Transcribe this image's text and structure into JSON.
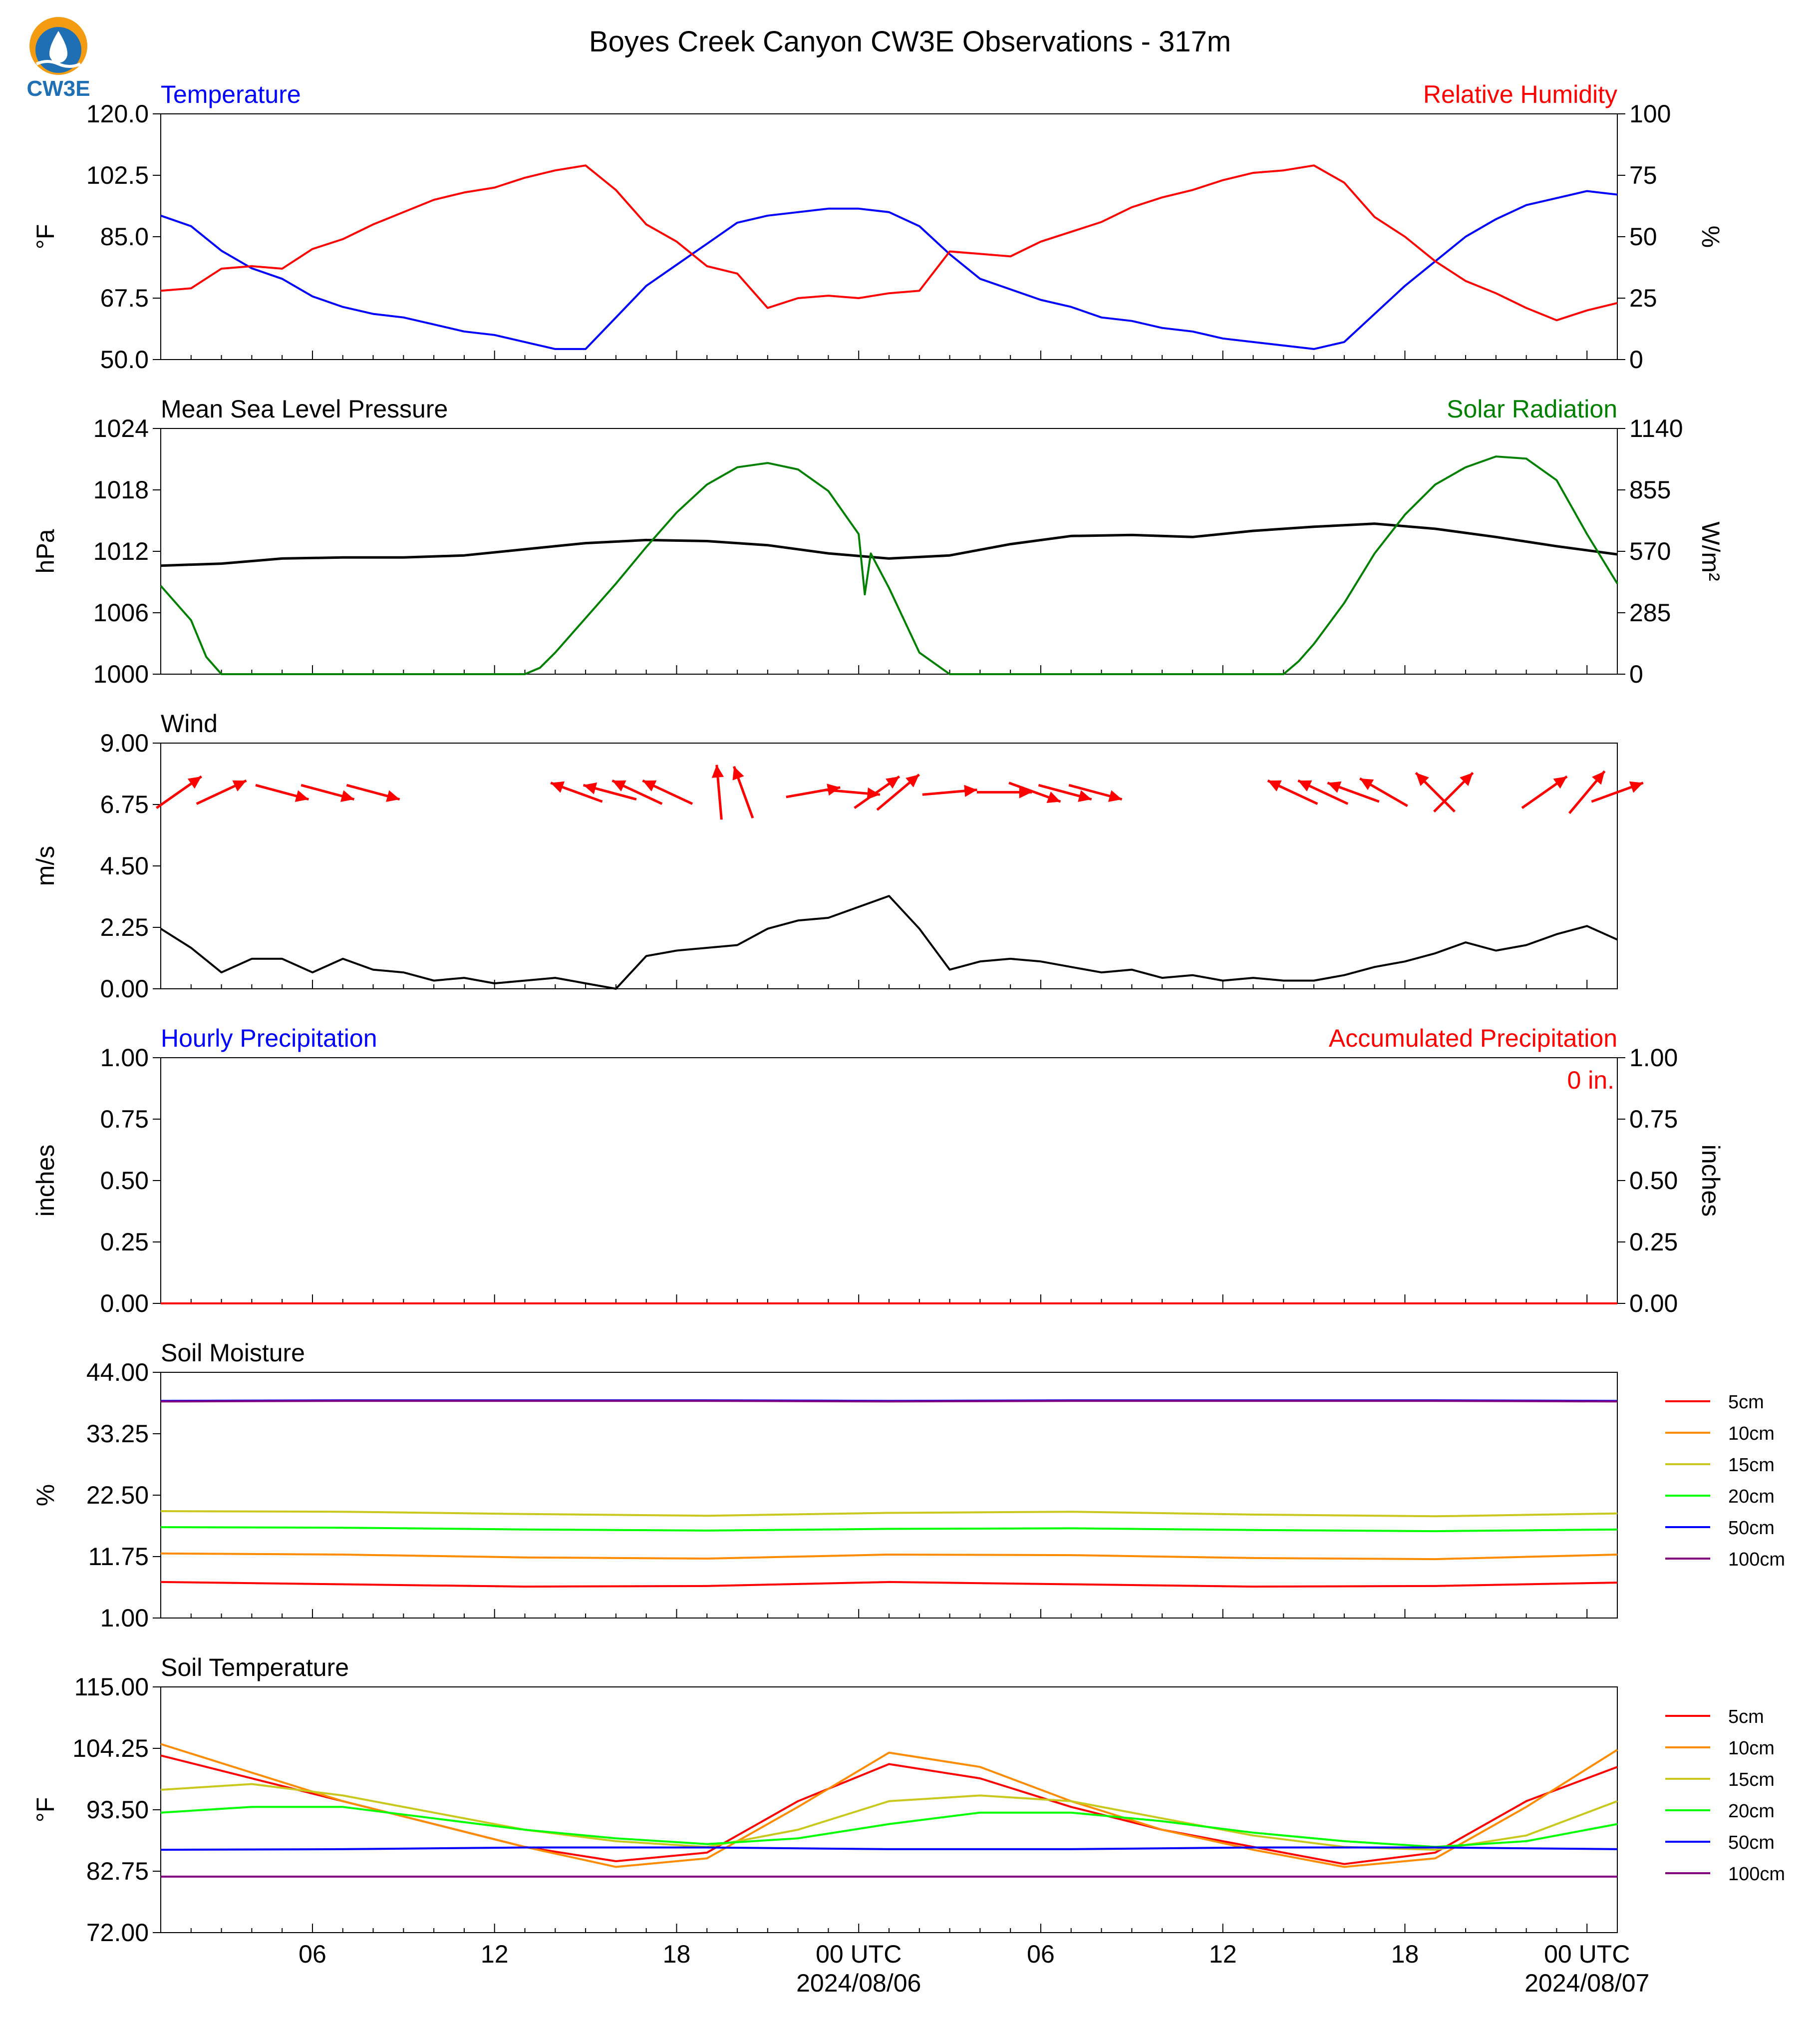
{
  "title": "Boyes Creek Canyon CW3E Observations - 317m",
  "logo": {
    "text": "CW3E",
    "icon": "water-drop-sun-logo-icon"
  },
  "colors": {
    "temp": "#0000ff",
    "rh": "#ff0000",
    "pressure": "#000000",
    "solar": "#008000",
    "wind": "#000000",
    "arrows": "#ff0000",
    "accum_text": "#ff0000",
    "hourly_label": "#0000ff"
  },
  "time_axis": {
    "ticks": [
      {
        "label": "06",
        "h": 5
      },
      {
        "label": "12",
        "h": 11
      },
      {
        "label": "18",
        "h": 17
      },
      {
        "label": "00 UTC",
        "sub": "2024/08/06",
        "h": 23
      },
      {
        "label": "06",
        "h": 29
      },
      {
        "label": "12",
        "h": 35
      },
      {
        "label": "18",
        "h": 41
      },
      {
        "label": "00 UTC",
        "sub": "2024/08/07",
        "h": 47
      }
    ]
  },
  "chart_data": [
    {
      "type": "line",
      "panel": "temperature",
      "left_title": "Temperature",
      "right_title": "Relative Humidity",
      "ylabel_left": "°F",
      "ylabel_right": "%",
      "ylim_left": [
        50,
        120
      ],
      "ylim_right": [
        0,
        100
      ],
      "yticks_left": [
        "50.0",
        "67.5",
        "85.0",
        "102.5",
        "120.0"
      ],
      "yticks_right": [
        "0",
        "25",
        "50",
        "75",
        "100"
      ],
      "series": [
        {
          "axis": "left",
          "x": [
            0,
            1,
            2,
            3,
            4,
            5,
            6,
            7,
            8,
            9,
            10,
            11,
            12,
            13,
            14,
            15,
            16,
            17,
            18,
            19,
            20,
            21,
            22,
            23,
            24,
            25,
            26,
            27,
            28,
            29,
            30,
            31,
            32,
            33,
            34,
            35,
            36,
            37,
            38,
            39,
            40,
            41,
            42,
            43,
            44,
            45,
            46,
            47,
            48
          ],
          "values": [
            91,
            88,
            81,
            76,
            73,
            68,
            65,
            63,
            62,
            60,
            58,
            57,
            55,
            53,
            53,
            62,
            71,
            77,
            83,
            89,
            91,
            92,
            93,
            93,
            92,
            88,
            80,
            73,
            70,
            67,
            65,
            62,
            61,
            59,
            58,
            56,
            55,
            54,
            53,
            55,
            63,
            71,
            78,
            85,
            90,
            94,
            96,
            98,
            97
          ]
        },
        {
          "axis": "right",
          "x": [
            0,
            1,
            2,
            3,
            4,
            5,
            6,
            7,
            8,
            9,
            10,
            11,
            12,
            13,
            14,
            15,
            16,
            17,
            18,
            19,
            20,
            21,
            22,
            23,
            24,
            25,
            26,
            27,
            28,
            29,
            30,
            31,
            32,
            33,
            34,
            35,
            36,
            37,
            38,
            39,
            40,
            41,
            42,
            43,
            44,
            45,
            46,
            47,
            48
          ],
          "values": [
            28,
            29,
            37,
            38,
            37,
            45,
            49,
            55,
            60,
            65,
            68,
            70,
            74,
            77,
            79,
            69,
            55,
            48,
            38,
            35,
            21,
            25,
            26,
            25,
            27,
            28,
            44,
            43,
            42,
            48,
            52,
            56,
            62,
            66,
            69,
            73,
            76,
            77,
            79,
            72,
            58,
            50,
            40,
            32,
            27,
            21,
            16,
            20,
            23
          ]
        }
      ]
    },
    {
      "type": "line",
      "panel": "pressure",
      "left_title": "Mean Sea Level Pressure",
      "right_title": "Solar Radiation",
      "ylabel_left": "hPa",
      "ylabel_right": "W/m²",
      "ylim_left": [
        1000,
        1024
      ],
      "ylim_right": [
        0,
        1140
      ],
      "yticks_left": [
        "1000",
        "1006",
        "1012",
        "1018",
        "1024"
      ],
      "yticks_right": [
        "0",
        "285",
        "570",
        "855",
        "1140"
      ],
      "series": [
        {
          "axis": "left",
          "x": [
            0,
            2,
            4,
            6,
            8,
            10,
            12,
            14,
            16,
            18,
            20,
            22,
            24,
            26,
            28,
            30,
            32,
            34,
            36,
            38,
            40,
            42,
            44,
            46,
            48
          ],
          "values": [
            1010.6,
            1010.8,
            1011.3,
            1011.4,
            1011.4,
            1011.6,
            1012.2,
            1012.8,
            1013.1,
            1013.0,
            1012.6,
            1011.8,
            1011.3,
            1011.6,
            1012.7,
            1013.5,
            1013.6,
            1013.4,
            1014.0,
            1014.4,
            1014.7,
            1014.2,
            1013.4,
            1012.5,
            1011.7
          ]
        },
        {
          "axis": "right",
          "x": [
            0,
            1,
            1.5,
            2,
            3,
            12,
            12.5,
            13,
            14,
            15,
            16,
            17,
            18,
            19,
            20,
            21,
            22,
            23,
            23.2,
            23.4,
            24,
            25,
            26,
            27,
            36,
            37,
            37.5,
            38,
            39,
            40,
            41,
            42,
            43,
            44,
            45,
            46,
            47,
            48
          ],
          "values": [
            410,
            250,
            80,
            0,
            0,
            0,
            30,
            100,
            260,
            420,
            590,
            750,
            880,
            960,
            980,
            950,
            850,
            650,
            370,
            560,
            400,
            100,
            0,
            0,
            0,
            0,
            60,
            140,
            330,
            560,
            740,
            880,
            960,
            1010,
            1000,
            900,
            650,
            420
          ]
        }
      ]
    },
    {
      "type": "line",
      "panel": "wind",
      "left_title": "Wind",
      "ylabel_left": "m/s",
      "ylim_left": [
        0,
        9
      ],
      "yticks_left": [
        "0.00",
        "2.25",
        "4.50",
        "6.75",
        "9.00"
      ],
      "series": [
        {
          "axis": "left",
          "x": [
            0,
            1,
            2,
            3,
            4,
            5,
            6,
            7,
            8,
            9,
            10,
            11,
            12,
            13,
            14,
            15,
            16,
            17,
            18,
            19,
            20,
            21,
            22,
            23,
            24,
            25,
            26,
            27,
            28,
            29,
            30,
            31,
            32,
            33,
            34,
            35,
            36,
            37,
            38,
            39,
            40,
            41,
            42,
            43,
            44,
            45,
            46,
            47,
            48
          ],
          "values": [
            2.2,
            1.5,
            0.6,
            1.1,
            1.1,
            0.6,
            1.1,
            0.7,
            0.6,
            0.3,
            0.4,
            0.2,
            0.3,
            0.4,
            0.2,
            0.0,
            1.2,
            1.4,
            1.5,
            1.6,
            2.2,
            2.5,
            2.6,
            3.0,
            3.4,
            2.2,
            0.7,
            1.0,
            1.1,
            1.0,
            0.8,
            0.6,
            0.7,
            0.4,
            0.5,
            0.3,
            0.4,
            0.3,
            0.3,
            0.5,
            0.8,
            1.0,
            1.3,
            1.7,
            1.4,
            1.6,
            2.0,
            2.3,
            1.8
          ]
        }
      ],
      "wind_vectors": [
        {
          "h": 0.6,
          "angle": 35
        },
        {
          "h": 2.0,
          "angle": 25
        },
        {
          "h": 4.0,
          "angle": -15
        },
        {
          "h": 5.5,
          "angle": -15
        },
        {
          "h": 7.0,
          "angle": -15
        },
        {
          "h": 13.7,
          "angle": 160
        },
        {
          "h": 14.8,
          "angle": 165
        },
        {
          "h": 15.7,
          "angle": 155
        },
        {
          "h": 16.7,
          "angle": 155
        },
        {
          "h": 18.4,
          "angle": 95
        },
        {
          "h": 19.2,
          "angle": 110
        },
        {
          "h": 21.5,
          "angle": 10
        },
        {
          "h": 22.8,
          "angle": -5
        },
        {
          "h": 23.6,
          "angle": 35
        },
        {
          "h": 24.3,
          "angle": 40
        },
        {
          "h": 26.0,
          "angle": 5
        },
        {
          "h": 27.8,
          "angle": 0
        },
        {
          "h": 28.8,
          "angle": -20
        },
        {
          "h": 29.8,
          "angle": -15
        },
        {
          "h": 30.8,
          "angle": -15
        },
        {
          "h": 37.3,
          "angle": 155
        },
        {
          "h": 38.3,
          "angle": 155
        },
        {
          "h": 39.3,
          "angle": 160
        },
        {
          "h": 40.3,
          "angle": 150
        },
        {
          "h": 42.0,
          "angle": 135
        },
        {
          "h": 42.6,
          "angle": 45
        },
        {
          "h": 45.6,
          "angle": 35
        },
        {
          "h": 47.0,
          "angle": 50
        },
        {
          "h": 48.0,
          "angle": 20
        }
      ]
    },
    {
      "type": "line",
      "panel": "precipitation",
      "left_title": "Hourly Precipitation",
      "right_title": "Accumulated Precipitation",
      "accum_label": "0 in.",
      "ylabel_left": "inches",
      "ylabel_right": "inches",
      "ylim_left": [
        0,
        1
      ],
      "ylim_right": [
        0,
        1
      ],
      "yticks_left": [
        "0.00",
        "0.25",
        "0.50",
        "0.75",
        "1.00"
      ],
      "yticks_right": [
        "0.00",
        "0.25",
        "0.50",
        "0.75",
        "1.00"
      ],
      "series": [
        {
          "axis": "left",
          "x": [
            0,
            48
          ],
          "values": [
            0,
            0
          ]
        }
      ]
    },
    {
      "type": "line",
      "panel": "soil_moisture",
      "left_title": "Soil Moisture",
      "ylabel_left": "%",
      "ylim_left": [
        1,
        44
      ],
      "yticks_left": [
        "1.00",
        "11.75",
        "22.50",
        "33.25",
        "44.00"
      ],
      "series": [
        {
          "name": "5cm",
          "color": "#ff0000",
          "x": [
            0,
            6,
            12,
            18,
            24,
            30,
            36,
            42,
            48
          ],
          "values": [
            7.3,
            6.9,
            6.5,
            6.6,
            7.3,
            6.9,
            6.5,
            6.6,
            7.2
          ]
        },
        {
          "name": "10cm",
          "color": "#ff8c00",
          "x": [
            0,
            6,
            12,
            18,
            24,
            30,
            36,
            42,
            48
          ],
          "values": [
            12.3,
            12.1,
            11.6,
            11.4,
            12.1,
            12.0,
            11.5,
            11.3,
            12.1
          ]
        },
        {
          "name": "15cm",
          "color": "#c8c81e",
          "x": [
            0,
            6,
            12,
            18,
            24,
            30,
            36,
            42,
            48
          ],
          "values": [
            19.7,
            19.6,
            19.2,
            18.9,
            19.4,
            19.6,
            19.1,
            18.8,
            19.3
          ]
        },
        {
          "name": "20cm",
          "color": "#00ff00",
          "x": [
            0,
            6,
            12,
            18,
            24,
            30,
            36,
            42,
            48
          ],
          "values": [
            16.9,
            16.8,
            16.5,
            16.3,
            16.6,
            16.7,
            16.4,
            16.2,
            16.5
          ]
        },
        {
          "name": "50cm",
          "color": "#0000ff",
          "x": [
            0,
            6,
            12,
            18,
            24,
            30,
            36,
            42,
            48
          ],
          "values": [
            39.0,
            39.1,
            39.1,
            39.1,
            39.0,
            39.1,
            39.1,
            39.1,
            39.0
          ]
        },
        {
          "name": "100cm",
          "color": "#800080",
          "x": [
            0,
            6,
            12,
            18,
            24,
            30,
            36,
            42,
            48
          ],
          "values": [
            38.9,
            39.0,
            39.0,
            39.0,
            38.9,
            39.0,
            39.0,
            39.0,
            38.9
          ]
        }
      ]
    },
    {
      "type": "line",
      "panel": "soil_temperature",
      "left_title": "Soil Temperature",
      "ylabel_left": "°F",
      "ylim_left": [
        72,
        115
      ],
      "yticks_left": [
        "72.00",
        "82.75",
        "93.50",
        "104.25",
        "115.00"
      ],
      "series": [
        {
          "name": "5cm",
          "color": "#ff0000",
          "x": [
            0,
            3,
            6,
            9,
            12,
            15,
            18,
            21,
            24,
            27,
            30,
            33,
            36,
            39,
            42,
            45,
            48
          ],
          "values": [
            103,
            99,
            95,
            91,
            87,
            84.5,
            86,
            95,
            101.5,
            99,
            94,
            90,
            87,
            84,
            86,
            95,
            101
          ]
        },
        {
          "name": "10cm",
          "color": "#ff8c00",
          "x": [
            0,
            3,
            6,
            9,
            12,
            15,
            18,
            21,
            24,
            27,
            30,
            33,
            36,
            39,
            42,
            45,
            48
          ],
          "values": [
            105,
            100,
            95,
            91,
            87,
            83.5,
            85,
            94,
            103.5,
            101,
            95,
            90,
            86.5,
            83.5,
            85,
            94,
            104
          ]
        },
        {
          "name": "15cm",
          "color": "#c8c81e",
          "x": [
            0,
            3,
            6,
            9,
            12,
            15,
            18,
            21,
            24,
            27,
            30,
            33,
            36,
            39,
            42,
            45,
            48
          ],
          "values": [
            97,
            98,
            96,
            93,
            90,
            88,
            87,
            90,
            95,
            96,
            95,
            92,
            89,
            87,
            86.5,
            89,
            95
          ]
        },
        {
          "name": "20cm",
          "color": "#00ff00",
          "x": [
            0,
            3,
            6,
            9,
            12,
            15,
            18,
            21,
            24,
            27,
            30,
            33,
            36,
            39,
            42,
            45,
            48
          ],
          "values": [
            93,
            94,
            94,
            92,
            90,
            88.5,
            87.5,
            88.5,
            91,
            93,
            93,
            91.5,
            89.5,
            88,
            87,
            88,
            91
          ]
        },
        {
          "name": "50cm",
          "color": "#0000ff",
          "x": [
            0,
            6,
            12,
            18,
            24,
            30,
            36,
            42,
            48
          ],
          "values": [
            86.5,
            86.6,
            86.9,
            86.9,
            86.6,
            86.6,
            86.9,
            86.9,
            86.6
          ]
        },
        {
          "name": "100cm",
          "color": "#800080",
          "x": [
            0,
            48
          ],
          "values": [
            81.8,
            81.8
          ]
        }
      ]
    }
  ]
}
